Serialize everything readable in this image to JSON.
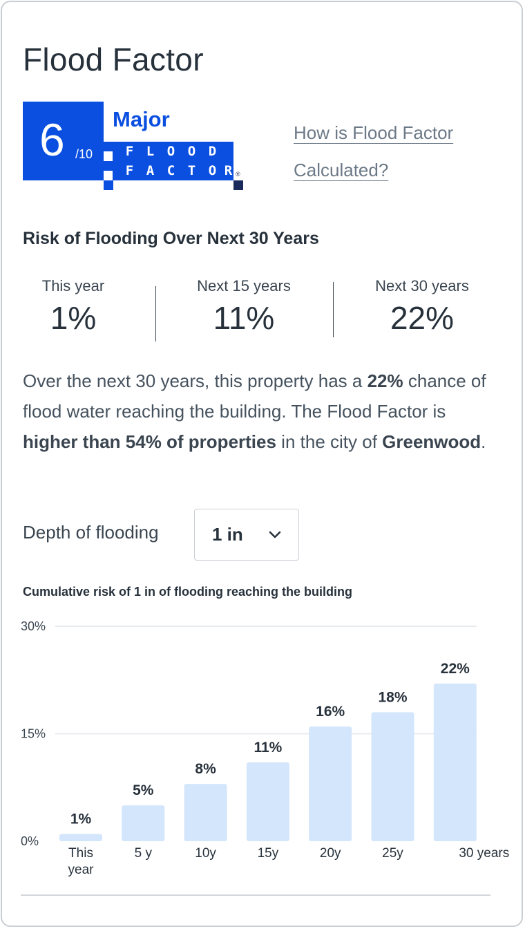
{
  "title": "Flood Factor",
  "badge": {
    "score": "6",
    "out_of": "/10",
    "level": "Major",
    "logo_row1": [
      "F",
      "L",
      "O",
      "O",
      "D"
    ],
    "logo_row2": [
      "F",
      "A",
      "C",
      "T",
      "O",
      "R"
    ],
    "logo_mark": "®",
    "color": "#0a4fe0"
  },
  "calc_link": "How is Flood Factor Calculated?",
  "section_title": "Risk of Flooding Over Next 30 Years",
  "stats": [
    {
      "label": "This year",
      "value": "1%"
    },
    {
      "label": "Next 15 years",
      "value": "11%"
    },
    {
      "label": "Next 30 years",
      "value": "22%"
    }
  ],
  "description": {
    "p1": "Over the next 30 years, this property has a ",
    "b1": "22%",
    "p2": " chance of flood water reaching the building. The Flood Factor is ",
    "b2": "higher than 54% of properties",
    "p3": " in the city of ",
    "b3": "Greenwood",
    "p4": "."
  },
  "depth": {
    "label": "Depth of flooding",
    "selected": "1 in",
    "icon": "chevron-down-icon"
  },
  "chart_data": {
    "type": "bar",
    "title": "Cumulative risk of 1 in of flooding reaching the building",
    "categories": [
      "This year",
      "5 y",
      "10y",
      "15y",
      "20y",
      "25y",
      "30 years"
    ],
    "values": [
      1,
      5,
      8,
      11,
      16,
      18,
      22
    ],
    "value_labels": [
      "1%",
      "5%",
      "8%",
      "11%",
      "16%",
      "18%",
      "22%"
    ],
    "yticks": [
      "0%",
      "15%",
      "30%"
    ],
    "ytick_values": [
      0,
      15,
      30
    ],
    "ylim": [
      0,
      30
    ],
    "grid": true,
    "bar_color": "#d3e6fc"
  }
}
